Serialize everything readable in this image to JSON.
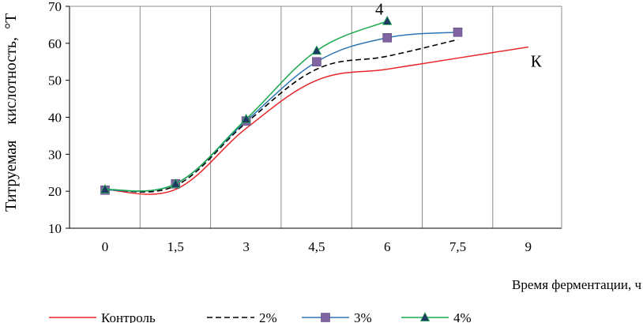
{
  "chart_data": {
    "type": "line",
    "title": "",
    "xlabel": "Время ферментации, ч",
    "ylabel": "Титруемая    кислотность,  °Т",
    "categories": [
      "0",
      "1,5",
      "3",
      "4,5",
      "6",
      "7,5",
      "9"
    ],
    "x": [
      0,
      1.5,
      3,
      4.5,
      6,
      7.5,
      9
    ],
    "ylim": [
      10,
      70
    ],
    "yticks": [
      10,
      20,
      30,
      40,
      50,
      60,
      70
    ],
    "grid": "vertical",
    "legend_position": "bottom",
    "series": [
      {
        "name": "Контроль",
        "color": "#e8262a",
        "dash": "solid",
        "marker": "none",
        "x": [
          0,
          1.5,
          3,
          4.5,
          6,
          7.5,
          9
        ],
        "values": [
          20.5,
          20.5,
          37,
          50,
          53,
          56,
          59
        ]
      },
      {
        "name": "2%",
        "color": "#000000",
        "dash": "dashed",
        "marker": "none",
        "x": [
          0,
          1.5,
          3,
          4.5,
          6,
          7.5
        ],
        "values": [
          20.5,
          21.5,
          38.5,
          53,
          56.5,
          61
        ]
      },
      {
        "name": "3%",
        "color": "#2e75b6",
        "dash": "solid",
        "marker": "square",
        "marker_color": "#8064a2",
        "x": [
          0,
          1.5,
          3,
          4.5,
          6,
          7.5
        ],
        "values": [
          20.3,
          22,
          39,
          55,
          61.5,
          63
        ]
      },
      {
        "name": "4%",
        "color": "#1aa84e",
        "dash": "solid",
        "marker": "triangle",
        "marker_color": "#1f3864",
        "x": [
          0,
          1.5,
          3,
          4.5,
          6
        ],
        "values": [
          20.5,
          22,
          39.5,
          58,
          66
        ]
      }
    ],
    "annotations": [
      {
        "text": "4",
        "series": "4%"
      },
      {
        "text": "К",
        "series": "Контроль"
      }
    ]
  }
}
